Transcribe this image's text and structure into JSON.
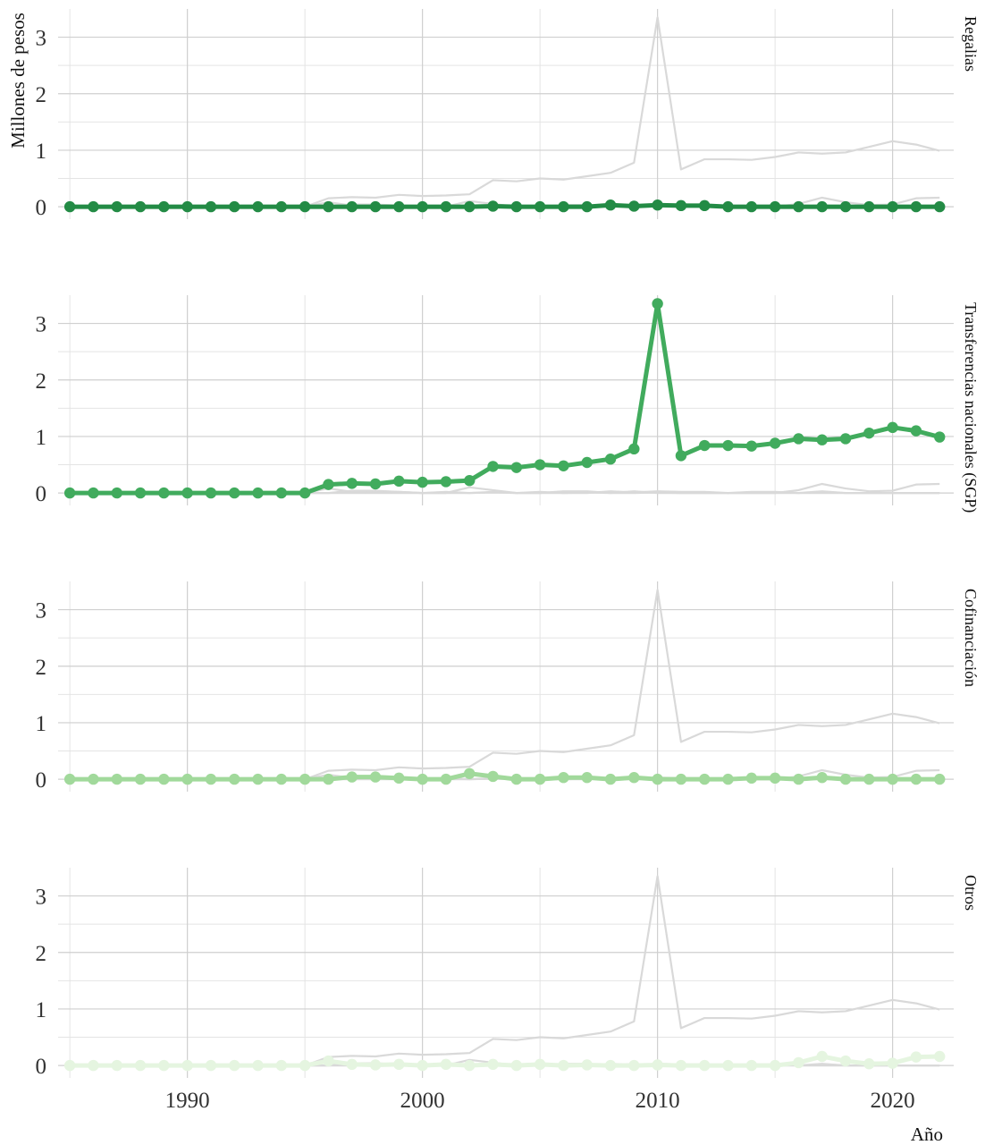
{
  "chart_data": {
    "type": "line",
    "xlabel": "Año",
    "ylabel": "Millones de pesos",
    "xlim": [
      1984.5,
      2022.6
    ],
    "ylim": [
      -0.22,
      3.5
    ],
    "x_ticks": [
      1990,
      2000,
      2010,
      2020
    ],
    "y_ticks": [
      0,
      1,
      2,
      3
    ],
    "grid": true,
    "markers": true,
    "background_series_color": "#d9d9d9",
    "x": [
      1985,
      1986,
      1987,
      1988,
      1989,
      1990,
      1991,
      1992,
      1993,
      1994,
      1995,
      1996,
      1997,
      1998,
      1999,
      2000,
      2001,
      2002,
      2003,
      2004,
      2005,
      2006,
      2007,
      2008,
      2009,
      2010,
      2011,
      2012,
      2013,
      2014,
      2015,
      2016,
      2017,
      2018,
      2019,
      2020,
      2021,
      2022
    ],
    "series": [
      {
        "name": "Regalias",
        "color": "#238b45",
        "values": [
          0,
          0,
          0,
          0,
          0,
          0,
          0,
          0,
          0,
          0,
          0,
          0,
          0,
          0,
          0,
          0,
          0,
          0,
          0.01,
          0,
          0,
          0,
          0,
          0.03,
          0.01,
          0.03,
          0.02,
          0.02,
          0,
          0,
          0,
          0,
          0,
          0,
          0,
          0,
          0,
          0
        ]
      },
      {
        "name": "Transferencias nacionales (SGP)",
        "color": "#41ab5d",
        "values": [
          0,
          0,
          0,
          0,
          0,
          0,
          0,
          0,
          0,
          0,
          0,
          0.15,
          0.17,
          0.16,
          0.21,
          0.19,
          0.2,
          0.22,
          0.47,
          0.45,
          0.5,
          0.48,
          0.54,
          0.6,
          0.78,
          3.35,
          0.66,
          0.84,
          0.84,
          0.83,
          0.88,
          0.96,
          0.94,
          0.96,
          1.06,
          1.16,
          1.1,
          0.99
        ]
      },
      {
        "name": "Cofinanciación",
        "color": "#a1d99b",
        "values": [
          0,
          0,
          0,
          0,
          0,
          0,
          0,
          0,
          0,
          0,
          0,
          0,
          0.04,
          0.04,
          0.02,
          0,
          0,
          0.1,
          0.05,
          0,
          0,
          0.03,
          0.03,
          0,
          0.03,
          0,
          0,
          0,
          0,
          0.02,
          0.02,
          0,
          0.03,
          0,
          0,
          0,
          0,
          0
        ]
      },
      {
        "name": "Otros",
        "color": "#e5f5e0",
        "values": [
          0,
          0,
          0,
          0,
          0,
          0,
          0,
          0,
          0,
          0,
          0,
          0.08,
          0.02,
          0.01,
          0.02,
          0,
          0.02,
          0,
          0.02,
          0,
          0.02,
          0,
          0.01,
          0,
          0,
          0.01,
          0,
          0,
          0,
          0,
          0,
          0.05,
          0.16,
          0.08,
          0.03,
          0.04,
          0.15,
          0.16
        ]
      }
    ]
  }
}
